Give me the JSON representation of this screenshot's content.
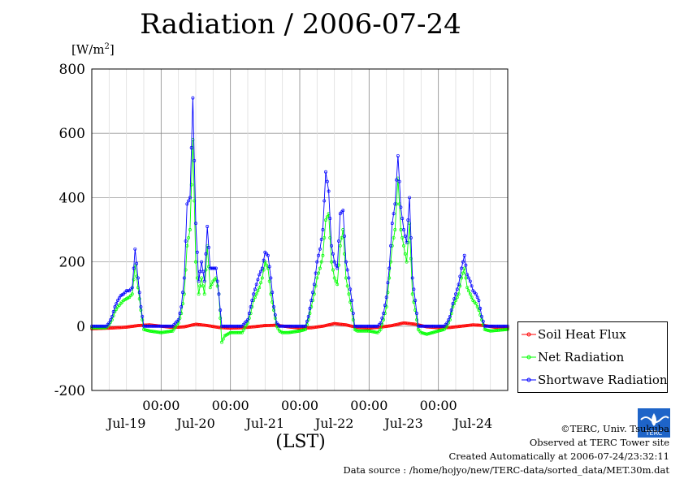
{
  "chart_data": {
    "type": "line",
    "title": "Radiation / 2006-07-24",
    "ylabel_unit": "[W/m",
    "ylabel_unit_sup": "2",
    "ylabel_unit_end": "]",
    "xlabel": "(LST)",
    "ylim": [
      -200,
      800
    ],
    "yticks": [
      -200,
      0,
      200,
      400,
      600,
      800
    ],
    "ytick_labels": [
      "-200",
      "0",
      "200",
      "400",
      "600",
      "800"
    ],
    "x_unit": "hours",
    "xlim": [
      0,
      144
    ],
    "time_ticks": [
      {
        "x": 24,
        "label": "00:00"
      },
      {
        "x": 48,
        "label": "00:00"
      },
      {
        "x": 72,
        "label": "00:00"
      },
      {
        "x": 96,
        "label": "00:00"
      },
      {
        "x": 120,
        "label": "00:00"
      }
    ],
    "day_labels": [
      {
        "x": 12,
        "label": "Jul-19"
      },
      {
        "x": 36,
        "label": "Jul-20"
      },
      {
        "x": 60,
        "label": "Jul-21"
      },
      {
        "x": 84,
        "label": "Jul-22"
      },
      {
        "x": 108,
        "label": "Jul-23"
      },
      {
        "x": 132,
        "label": "Jul-24"
      }
    ],
    "grid": true,
    "legend_position": "bottom-right-outside",
    "series": [
      {
        "name": "Soil Heat Flux",
        "color": "#ff0000",
        "x": [
          0,
          6,
          12,
          16,
          20,
          24,
          28,
          32,
          36,
          40,
          44,
          48,
          52,
          56,
          60,
          64,
          68,
          72,
          76,
          80,
          84,
          88,
          92,
          96,
          100,
          104,
          108,
          112,
          116,
          120,
          124,
          128,
          132,
          136,
          140,
          144
        ],
        "values": [
          -8,
          -6,
          -3,
          2,
          4,
          0,
          -4,
          -2,
          6,
          2,
          -4,
          -6,
          -5,
          -2,
          2,
          3,
          -2,
          -6,
          -5,
          0,
          8,
          4,
          -4,
          -6,
          -3,
          2,
          10,
          6,
          -2,
          -5,
          -4,
          0,
          4,
          2,
          -4,
          -6
        ]
      },
      {
        "name": "Net Radiation",
        "color": "#00ff00",
        "x": [
          0,
          5,
          6,
          7,
          8,
          9,
          10,
          11,
          12,
          13,
          14,
          15,
          16,
          17,
          18,
          20,
          24,
          28,
          30,
          31,
          32,
          33,
          34,
          35,
          36,
          37,
          38,
          39,
          40,
          41,
          42,
          43,
          44,
          45,
          46,
          47,
          48,
          52,
          54,
          55,
          56,
          57,
          58,
          59,
          60,
          61,
          62,
          63,
          64,
          65,
          66,
          68,
          72,
          74,
          75,
          76,
          77,
          78,
          79,
          80,
          81,
          82,
          83,
          84,
          85,
          86,
          87,
          88,
          89,
          90,
          91,
          92,
          96,
          99,
          100,
          101,
          102,
          103,
          104,
          105,
          106,
          107,
          108,
          109,
          110,
          111,
          112,
          113,
          114,
          116,
          120,
          122,
          123,
          124,
          125,
          126,
          127,
          128,
          129,
          130,
          131,
          132,
          133,
          134,
          135,
          136,
          138,
          144
        ],
        "values": [
          -5,
          -5,
          5,
          20,
          45,
          60,
          70,
          80,
          85,
          90,
          100,
          190,
          120,
          50,
          -10,
          -15,
          -20,
          -15,
          10,
          40,
          100,
          250,
          300,
          580,
          200,
          100,
          150,
          100,
          250,
          120,
          140,
          150,
          100,
          -50,
          -30,
          -25,
          -20,
          -20,
          10,
          40,
          80,
          100,
          120,
          150,
          200,
          180,
          100,
          50,
          0,
          -15,
          -20,
          -20,
          -15,
          -10,
          20,
          60,
          100,
          150,
          180,
          220,
          330,
          350,
          200,
          150,
          130,
          250,
          300,
          150,
          100,
          50,
          -10,
          -15,
          -15,
          -20,
          -10,
          20,
          60,
          150,
          250,
          300,
          460,
          300,
          250,
          200,
          320,
          100,
          50,
          -10,
          -20,
          -25,
          -15,
          -10,
          0,
          20,
          60,
          80,
          100,
          150,
          180,
          120,
          100,
          80,
          70,
          50,
          20,
          -10,
          -15,
          -10
        ]
      },
      {
        "name": "Shortwave Radiation",
        "color": "#0000ff",
        "x": [
          0,
          5,
          6,
          7,
          8,
          9,
          10,
          11,
          12,
          13,
          14,
          15,
          16,
          17,
          18,
          20,
          24,
          28,
          30,
          31,
          32,
          33,
          34,
          35,
          36,
          37,
          38,
          39,
          40,
          41,
          42,
          43,
          44,
          45,
          46,
          47,
          48,
          52,
          54,
          55,
          56,
          57,
          58,
          59,
          60,
          61,
          62,
          63,
          64,
          65,
          66,
          68,
          72,
          74,
          75,
          76,
          77,
          78,
          79,
          80,
          81,
          82,
          83,
          84,
          85,
          86,
          87,
          88,
          89,
          90,
          91,
          92,
          96,
          99,
          100,
          101,
          102,
          103,
          104,
          105,
          106,
          107,
          108,
          109,
          110,
          111,
          112,
          113,
          114,
          116,
          120,
          122,
          123,
          124,
          125,
          126,
          127,
          128,
          129,
          130,
          131,
          132,
          133,
          134,
          135,
          136,
          138,
          144
        ],
        "values": [
          0,
          0,
          10,
          30,
          60,
          80,
          95,
          100,
          110,
          110,
          120,
          240,
          150,
          60,
          0,
          0,
          0,
          0,
          20,
          60,
          150,
          380,
          400,
          710,
          320,
          140,
          200,
          140,
          310,
          180,
          180,
          180,
          100,
          0,
          0,
          0,
          0,
          0,
          20,
          60,
          100,
          130,
          160,
          180,
          230,
          220,
          150,
          60,
          10,
          0,
          0,
          0,
          0,
          0,
          30,
          80,
          130,
          200,
          240,
          300,
          480,
          420,
          250,
          200,
          180,
          350,
          360,
          200,
          150,
          80,
          0,
          0,
          0,
          0,
          10,
          40,
          90,
          180,
          320,
          380,
          530,
          370,
          300,
          260,
          400,
          150,
          80,
          0,
          0,
          0,
          0,
          0,
          10,
          30,
          70,
          100,
          130,
          180,
          220,
          160,
          140,
          110,
          100,
          80,
          30,
          0,
          0,
          0
        ]
      }
    ]
  },
  "footer": {
    "copyright": "©TERC, Univ. Tsukuba",
    "site": "Observed at TERC Tower site",
    "created": "Created Automatically at 2006-07-24/23:32:11",
    "source": "Data source : /home/hojyo/new/TERC-data/sorted_data/MET.30m.dat"
  },
  "logo_text": "TERC"
}
